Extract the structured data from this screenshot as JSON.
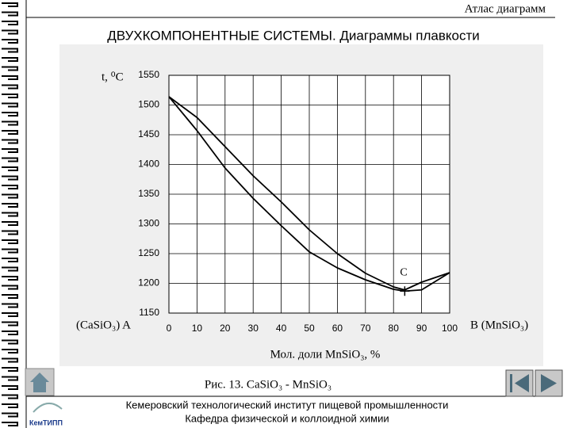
{
  "header": "Атлас диаграмм",
  "title": "ДВУХКОМПОНЕНТНЫЕ СИСТЕМЫ. Диаграммы плавкости",
  "chart_data": {
    "type": "line",
    "y_label": "t, ⁰C",
    "x_label": "Мол. доли MnSiO₃, %",
    "left_label": "(CaSiO₃) A",
    "right_label": "B (MnSiO₃)",
    "annotation": {
      "text": "C",
      "x": 84,
      "y": 1187
    },
    "x": [
      0,
      10,
      20,
      30,
      40,
      50,
      60,
      70,
      80,
      84,
      90,
      100
    ],
    "series": [
      {
        "color": "#000000",
        "values": [
          1514,
          1479,
          1430,
          1381,
          1337,
          1290,
          1250,
          1217,
          1194,
          1189,
          1202,
          1218
        ]
      },
      {
        "color": "#000000",
        "values": [
          1514,
          1457,
          1394,
          1343,
          1297,
          1253,
          1226,
          1206,
          1190,
          1187,
          1189,
          1218
        ]
      }
    ],
    "xlim": [
      0,
      100
    ],
    "xticks": [
      0,
      10,
      20,
      30,
      40,
      50,
      60,
      70,
      80,
      90,
      100
    ],
    "ylim": [
      1150,
      1550
    ],
    "yticks": [
      1150,
      1200,
      1250,
      1300,
      1350,
      1400,
      1450,
      1500,
      1550
    ],
    "grid": true
  },
  "caption": "Рис. 13. CaSiO₃ - MnSiO₃",
  "footer": [
    "Кемеровский технологический институт пищевой промышленности",
    "Кафедра физической и коллоидной химии"
  ],
  "logo": "КемТИПП"
}
